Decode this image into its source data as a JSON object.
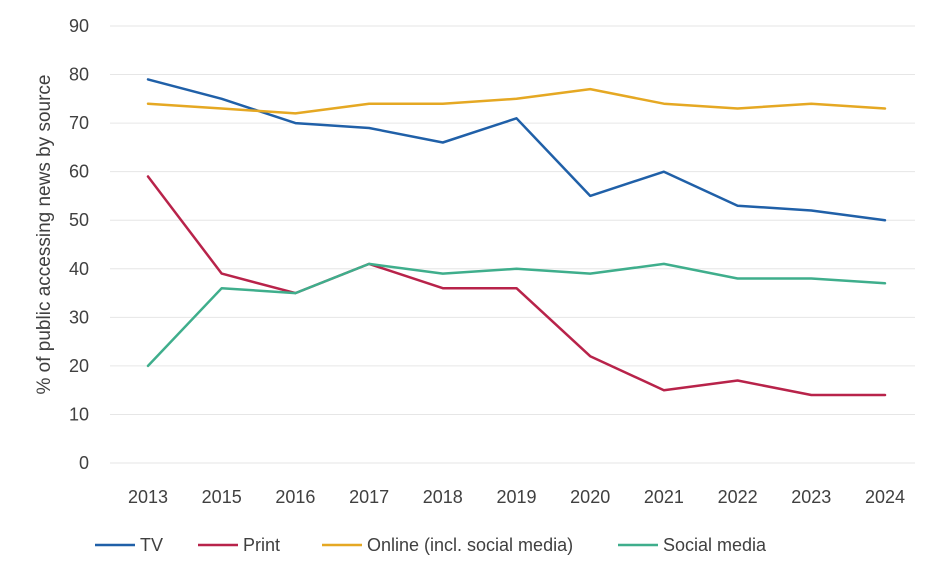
{
  "chart_data": {
    "type": "line",
    "title": "",
    "xlabel": "",
    "ylabel": "% of public accessing news by source",
    "ylim": [
      0,
      90
    ],
    "yticks": [
      0,
      10,
      20,
      30,
      40,
      50,
      60,
      70,
      80,
      90
    ],
    "grid": "horizontal",
    "legend_position": "bottom",
    "categories": [
      "2013",
      "2015",
      "2016",
      "2017",
      "2018",
      "2019",
      "2020",
      "2021",
      "2022",
      "2023",
      "2024"
    ],
    "series": [
      {
        "name": "TV",
        "color": "#2060a8",
        "values": [
          79,
          75,
          70,
          69,
          66,
          71,
          55,
          60,
          53,
          52,
          50
        ]
      },
      {
        "name": "Print",
        "color": "#b8234a",
        "values": [
          59,
          39,
          35,
          41,
          36,
          36,
          22,
          15,
          17,
          14,
          14
        ]
      },
      {
        "name": "Online (incl. social media)",
        "color": "#e5a823",
        "values": [
          74,
          73,
          72,
          74,
          74,
          75,
          77,
          74,
          73,
          74,
          73
        ]
      },
      {
        "name": "Social media",
        "color": "#3fae8c",
        "values": [
          20,
          36,
          35,
          41,
          39,
          40,
          39,
          41,
          38,
          38,
          37
        ]
      }
    ]
  }
}
